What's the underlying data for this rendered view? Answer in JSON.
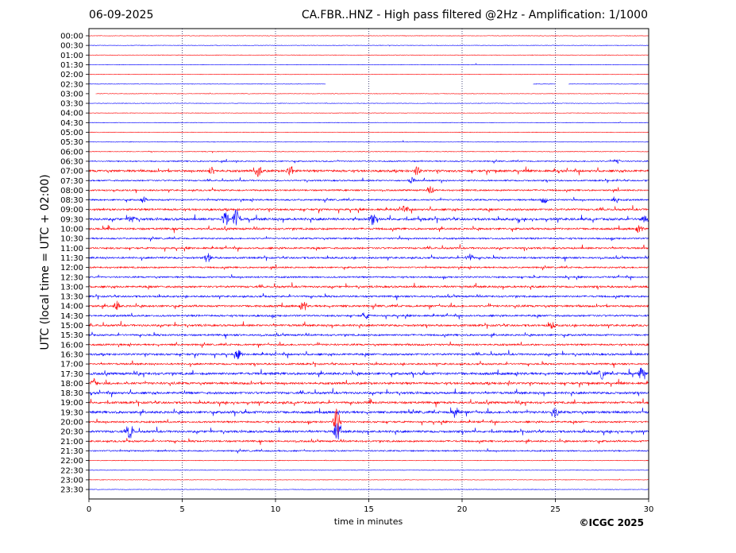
{
  "header": {
    "date": "06-09-2025",
    "title": "CA.FBR..HNZ - High pass filtered @2Hz - Amplification: 1/1000"
  },
  "footer": {
    "copyright": "©ICGC 2025"
  },
  "chart_data": {
    "type": "line",
    "title": "CA.FBR..HNZ - High pass filtered @2Hz - Amplification: 1/1000",
    "xlabel": "time in minutes",
    "ylabel": "UTC (local time = UTC + 02:00)",
    "xlim": [
      0,
      30
    ],
    "x_ticks": [
      0,
      5,
      10,
      15,
      20,
      25,
      30
    ],
    "grid": "vertical dotted at 5, 10, 15, 20, 25",
    "y_tick_labels": [
      "00:00",
      "00:30",
      "01:00",
      "01:30",
      "02:00",
      "02:30",
      "03:00",
      "03:30",
      "04:00",
      "04:30",
      "05:00",
      "05:30",
      "06:00",
      "06:30",
      "07:00",
      "07:30",
      "08:00",
      "08:30",
      "09:00",
      "09:30",
      "10:00",
      "10:30",
      "11:00",
      "11:30",
      "12:00",
      "12:30",
      "13:00",
      "13:30",
      "14:00",
      "14:30",
      "15:00",
      "15:30",
      "16:00",
      "16:30",
      "17:00",
      "17:30",
      "18:00",
      "18:30",
      "19:00",
      "19:30",
      "20:00",
      "20:30",
      "21:00",
      "21:30",
      "22:00",
      "22:30",
      "23:00",
      "23:30"
    ],
    "colors": {
      "red": "#ff0000",
      "blue": "#0000ff"
    },
    "traces": [
      {
        "label": "00:00",
        "color": "red",
        "level": 0.05,
        "gaps": []
      },
      {
        "label": "00:30",
        "color": "blue",
        "level": 0.05,
        "gaps": []
      },
      {
        "label": "01:00",
        "color": "red",
        "level": 0.05,
        "gaps": []
      },
      {
        "label": "01:30",
        "color": "blue",
        "level": 0.05,
        "gaps": []
      },
      {
        "label": "02:00",
        "color": "red",
        "level": 0.05,
        "gaps": []
      },
      {
        "label": "02:30",
        "color": "blue",
        "level": 0.05,
        "gaps": [
          [
            12.7,
            23.8
          ],
          [
            25.0,
            25.7
          ]
        ]
      },
      {
        "label": "03:00",
        "color": "red",
        "level": 0.05,
        "gaps": [
          [
            0,
            0.35
          ]
        ]
      },
      {
        "label": "03:30",
        "color": "blue",
        "level": 0.05,
        "gaps": []
      },
      {
        "label": "04:00",
        "color": "red",
        "level": 0.05,
        "gaps": []
      },
      {
        "label": "04:30",
        "color": "blue",
        "level": 0.05,
        "gaps": []
      },
      {
        "label": "05:00",
        "color": "red",
        "level": 0.08,
        "gaps": []
      },
      {
        "label": "05:30",
        "color": "blue",
        "level": 0.08,
        "gaps": []
      },
      {
        "label": "06:00",
        "color": "red",
        "level": 0.1,
        "gaps": []
      },
      {
        "label": "06:30",
        "color": "blue",
        "level": 0.4,
        "gaps": []
      },
      {
        "label": "07:00",
        "color": "red",
        "level": 0.9,
        "gaps": []
      },
      {
        "label": "07:30",
        "color": "blue",
        "level": 0.5,
        "gaps": []
      },
      {
        "label": "08:00",
        "color": "red",
        "level": 0.6,
        "gaps": []
      },
      {
        "label": "08:30",
        "color": "blue",
        "level": 0.6,
        "gaps": []
      },
      {
        "label": "09:00",
        "color": "red",
        "level": 0.8,
        "gaps": []
      },
      {
        "label": "09:30",
        "color": "blue",
        "level": 1.0,
        "gaps": []
      },
      {
        "label": "10:00",
        "color": "red",
        "level": 0.8,
        "gaps": []
      },
      {
        "label": "10:30",
        "color": "blue",
        "level": 0.6,
        "gaps": []
      },
      {
        "label": "11:00",
        "color": "red",
        "level": 0.7,
        "gaps": []
      },
      {
        "label": "11:30",
        "color": "blue",
        "level": 0.7,
        "gaps": []
      },
      {
        "label": "12:00",
        "color": "red",
        "level": 0.6,
        "gaps": []
      },
      {
        "label": "12:30",
        "color": "blue",
        "level": 0.6,
        "gaps": []
      },
      {
        "label": "13:00",
        "color": "red",
        "level": 0.8,
        "gaps": []
      },
      {
        "label": "13:30",
        "color": "blue",
        "level": 0.7,
        "gaps": []
      },
      {
        "label": "14:00",
        "color": "red",
        "level": 0.8,
        "gaps": []
      },
      {
        "label": "14:30",
        "color": "blue",
        "level": 0.7,
        "gaps": []
      },
      {
        "label": "15:00",
        "color": "red",
        "level": 0.8,
        "gaps": []
      },
      {
        "label": "15:30",
        "color": "blue",
        "level": 0.7,
        "gaps": []
      },
      {
        "label": "16:00",
        "color": "red",
        "level": 0.7,
        "gaps": []
      },
      {
        "label": "16:30",
        "color": "blue",
        "level": 0.8,
        "gaps": []
      },
      {
        "label": "17:00",
        "color": "red",
        "level": 0.7,
        "gaps": []
      },
      {
        "label": "17:30",
        "color": "blue",
        "level": 1.0,
        "gaps": []
      },
      {
        "label": "18:00",
        "color": "red",
        "level": 0.9,
        "gaps": []
      },
      {
        "label": "18:30",
        "color": "blue",
        "level": 0.9,
        "gaps": []
      },
      {
        "label": "19:00",
        "color": "red",
        "level": 0.9,
        "gaps": []
      },
      {
        "label": "19:30",
        "color": "blue",
        "level": 1.0,
        "gaps": []
      },
      {
        "label": "20:00",
        "color": "red",
        "level": 0.7,
        "gaps": []
      },
      {
        "label": "20:30",
        "color": "blue",
        "level": 0.9,
        "gaps": []
      },
      {
        "label": "21:00",
        "color": "red",
        "level": 0.7,
        "gaps": []
      },
      {
        "label": "21:30",
        "color": "blue",
        "level": 0.5,
        "gaps": []
      },
      {
        "label": "22:00",
        "color": "red",
        "level": 0.1,
        "gaps": []
      },
      {
        "label": "22:30",
        "color": "blue",
        "level": 0.05,
        "gaps": []
      },
      {
        "label": "23:00",
        "color": "red",
        "level": 0.05,
        "gaps": []
      },
      {
        "label": "23:30",
        "color": "blue",
        "level": 0.05,
        "gaps": []
      }
    ],
    "events": [
      {
        "label": "06:30",
        "minute": 28.3,
        "amp": 0.4
      },
      {
        "label": "07:00",
        "minute": 6.6,
        "amp": 0.6
      },
      {
        "label": "07:00",
        "minute": 9.1,
        "amp": 0.9
      },
      {
        "label": "07:00",
        "minute": 10.8,
        "amp": 0.9
      },
      {
        "label": "07:00",
        "minute": 17.6,
        "amp": 0.5
      },
      {
        "label": "07:30",
        "minute": 17.3,
        "amp": 0.4
      },
      {
        "label": "08:00",
        "minute": 18.3,
        "amp": 0.5
      },
      {
        "label": "08:30",
        "minute": 2.9,
        "amp": 0.4
      },
      {
        "label": "08:30",
        "minute": 24.4,
        "amp": 0.5
      },
      {
        "label": "08:30",
        "minute": 28.2,
        "amp": 0.5
      },
      {
        "label": "09:00",
        "minute": 16.9,
        "amp": 0.6
      },
      {
        "label": "09:30",
        "minute": 2.3,
        "amp": 0.6
      },
      {
        "label": "09:30",
        "minute": 7.3,
        "amp": 1.2
      },
      {
        "label": "09:30",
        "minute": 7.9,
        "amp": 1.6
      },
      {
        "label": "09:30",
        "minute": 15.2,
        "amp": 0.8
      },
      {
        "label": "09:30",
        "minute": 29.8,
        "amp": 0.5
      },
      {
        "label": "10:00",
        "minute": 29.5,
        "amp": 0.6
      },
      {
        "label": "11:30",
        "minute": 6.4,
        "amp": 0.6
      },
      {
        "label": "11:30",
        "minute": 20.4,
        "amp": 0.6
      },
      {
        "label": "14:00",
        "minute": 1.5,
        "amp": 0.6
      },
      {
        "label": "14:00",
        "minute": 11.5,
        "amp": 0.8
      },
      {
        "label": "14:30",
        "minute": 14.8,
        "amp": 0.5
      },
      {
        "label": "15:00",
        "minute": 24.8,
        "amp": 0.5
      },
      {
        "label": "16:30",
        "minute": 8.0,
        "amp": 0.6
      },
      {
        "label": "17:30",
        "minute": 27.5,
        "amp": 0.7
      },
      {
        "label": "17:30",
        "minute": 29.6,
        "amp": 0.9
      },
      {
        "label": "18:00",
        "minute": 0.3,
        "amp": 0.6
      },
      {
        "label": "19:30",
        "minute": 19.7,
        "amp": 0.7
      },
      {
        "label": "19:30",
        "minute": 25.0,
        "amp": 0.7
      },
      {
        "label": "20:00",
        "minute": 13.3,
        "amp": 2.5
      },
      {
        "label": "20:30",
        "minute": 2.2,
        "amp": 1.2
      },
      {
        "label": "20:30",
        "minute": 13.3,
        "amp": 1.5
      }
    ]
  }
}
